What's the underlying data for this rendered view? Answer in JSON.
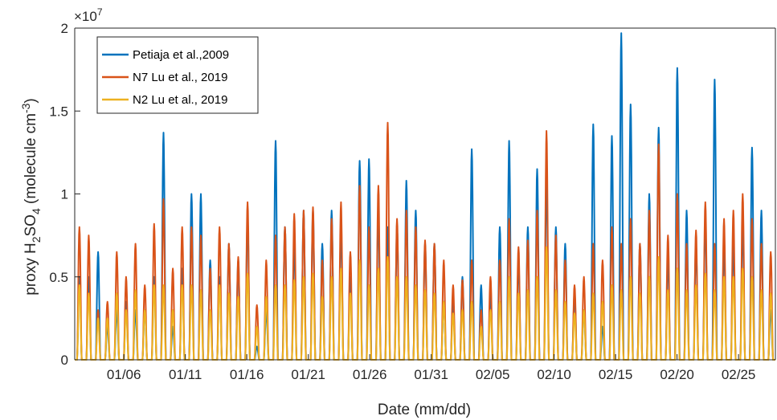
{
  "chart_data": {
    "type": "line",
    "xlabel": "Date (mm/dd)",
    "ylabel_prefix": "proxy H",
    "ylabel_sub1": "2",
    "ylabel_mid": "SO",
    "ylabel_sub2": "4",
    "ylabel_unit_open": " (molecule cm",
    "ylabel_unit_sup": "-3",
    "ylabel_unit_close": ")",
    "exponent_base": "×10",
    "exponent_power": "7",
    "x_start": "01/02",
    "x_end": "02/28",
    "x_ticks": [
      "01/06",
      "01/11",
      "01/16",
      "01/21",
      "01/26",
      "01/31",
      "02/05",
      "02/10",
      "02/15",
      "02/20",
      "02/25"
    ],
    "ylim": [
      0,
      2
    ],
    "y_ticks": [
      0,
      0.5,
      1,
      1.5,
      2
    ],
    "y_tick_labels": [
      "0",
      "0.5",
      "1",
      "1.5",
      "2"
    ],
    "grid": false,
    "legend_position": "top-left",
    "series": [
      {
        "name": "Petiaja et al.,2009",
        "color": "#0072BD",
        "daily_peaks": [
          0.5,
          0.5,
          0.65,
          0.2,
          0.3,
          0.35,
          0.3,
          0.3,
          0.5,
          1.37,
          0.2,
          0.55,
          1.0,
          1.0,
          0.6,
          0.5,
          0.7,
          0.6,
          0.85,
          0.08,
          0.3,
          1.32,
          0.8,
          0.7,
          0.9,
          0.9,
          0.7,
          0.9,
          0.8,
          0.5,
          1.2,
          1.21,
          0.9,
          0.8,
          0.8,
          1.08,
          0.9,
          0.7,
          0.7,
          0.35,
          0.35,
          0.5,
          1.27,
          0.45,
          0.4,
          0.8,
          1.32,
          0.6,
          0.8,
          1.15,
          1.1,
          0.8,
          0.7,
          0.4,
          0.3,
          1.42,
          0.2,
          1.35,
          1.97,
          1.54,
          0.7,
          1.0,
          1.4,
          0.6,
          1.76,
          0.9,
          0.7,
          0.83,
          1.69,
          0.7,
          0.7,
          0.8,
          1.28,
          0.9,
          0.3
        ]
      },
      {
        "name": "N7 Lu et al., 2019",
        "color": "#D95319",
        "daily_peaks": [
          0.8,
          0.75,
          0.3,
          0.35,
          0.65,
          0.5,
          0.7,
          0.45,
          0.82,
          0.97,
          0.55,
          0.8,
          0.8,
          0.75,
          0.55,
          0.8,
          0.7,
          0.62,
          0.95,
          0.33,
          0.6,
          0.75,
          0.8,
          0.88,
          0.9,
          0.92,
          0.6,
          0.85,
          0.95,
          0.65,
          1.05,
          0.8,
          1.05,
          1.43,
          0.85,
          0.9,
          0.8,
          0.72,
          0.7,
          0.6,
          0.45,
          0.48,
          0.6,
          0.3,
          0.5,
          0.6,
          0.85,
          0.68,
          0.72,
          0.9,
          1.38,
          0.75,
          0.6,
          0.45,
          0.5,
          0.7,
          0.6,
          0.8,
          0.7,
          0.85,
          0.7,
          0.9,
          1.3,
          0.75,
          1.0,
          0.7,
          0.78,
          0.95,
          0.7,
          0.85,
          0.9,
          1.0,
          0.85,
          0.7,
          0.65
        ]
      },
      {
        "name": "N2 Lu et al., 2019",
        "color": "#EDB120",
        "daily_peaks": [
          0.45,
          0.4,
          0.25,
          0.25,
          0.4,
          0.3,
          0.42,
          0.3,
          0.45,
          0.45,
          0.3,
          0.45,
          0.45,
          0.42,
          0.3,
          0.45,
          0.4,
          0.38,
          0.52,
          0.2,
          0.38,
          0.45,
          0.45,
          0.48,
          0.5,
          0.52,
          0.38,
          0.5,
          0.55,
          0.4,
          0.6,
          0.45,
          0.55,
          0.62,
          0.5,
          0.5,
          0.45,
          0.42,
          0.4,
          0.35,
          0.28,
          0.3,
          0.35,
          0.2,
          0.3,
          0.35,
          0.5,
          0.4,
          0.42,
          0.5,
          0.68,
          0.42,
          0.35,
          0.28,
          0.3,
          0.4,
          0.35,
          0.45,
          0.42,
          0.5,
          0.4,
          0.5,
          0.62,
          0.42,
          0.55,
          0.42,
          0.45,
          0.52,
          0.42,
          0.5,
          0.5,
          0.55,
          0.5,
          0.42,
          0.4
        ]
      }
    ]
  }
}
